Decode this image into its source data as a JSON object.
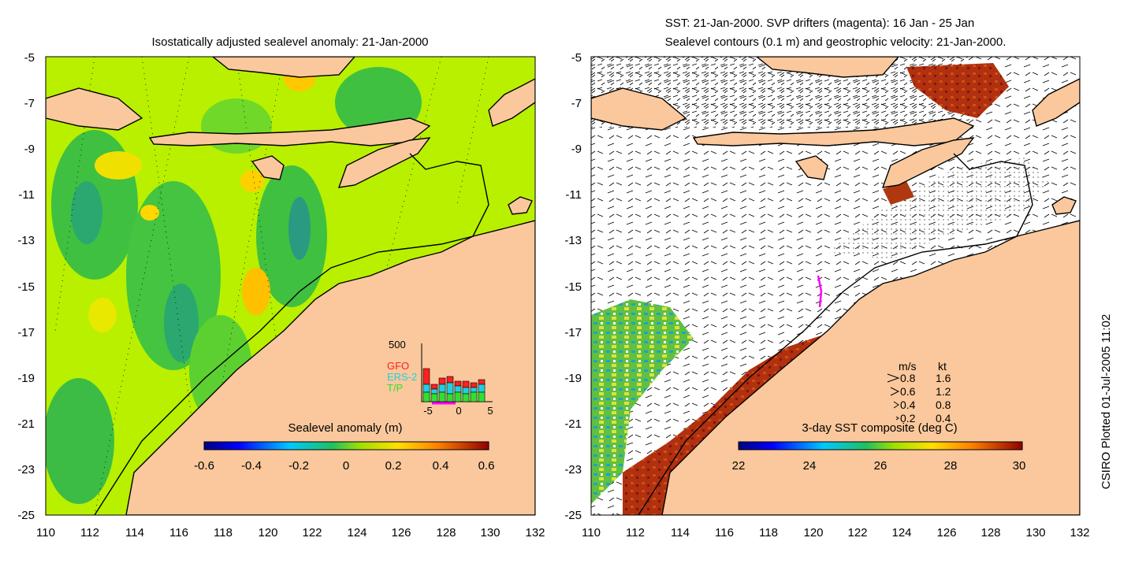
{
  "left": {
    "title": "Isostatically adjusted sealevel anomaly: 21-Jan-2000",
    "colorbar": {
      "label": "Sealevel anomaly (m)",
      "ticks": [
        "-0.6",
        "-0.4",
        "-0.2",
        "0",
        "0.2",
        "0.4",
        "0.6"
      ],
      "range": [
        -0.6,
        0.6
      ]
    },
    "inset": {
      "max_label": "500",
      "x_ticks": [
        "-5",
        "0",
        "5"
      ],
      "legend": [
        {
          "name": "GFO",
          "color": "#ff2020"
        },
        {
          "name": "ERS-2",
          "color": "#20d0e0"
        },
        {
          "name": "T/P",
          "color": "#30e030"
        }
      ]
    }
  },
  "right": {
    "title_line1": "SST: 21-Jan-2000. SVP drifters (magenta): 16 Jan - 25 Jan",
    "title_line2": "Sealevel contours (0.1 m) and geostrophic velocity: 21-Jan-2000.",
    "colorbar": {
      "label": "3-day SST composite (deg C)",
      "ticks": [
        "22",
        "24",
        "26",
        "28",
        "30"
      ],
      "range": [
        22,
        30
      ]
    },
    "velocity_legend": {
      "header_ms": "m/s",
      "header_kt": "kt",
      "rows": [
        {
          "ms": "0.8",
          "kt": "1.6"
        },
        {
          "ms": "0.6",
          "kt": "1.2"
        },
        {
          "ms": "0.4",
          "kt": "0.8"
        },
        {
          "ms": "0.2",
          "kt": "0.4"
        }
      ]
    }
  },
  "axes": {
    "x_ticks": [
      "110",
      "112",
      "114",
      "116",
      "118",
      "120",
      "122",
      "124",
      "126",
      "128",
      "130",
      "132"
    ],
    "y_ticks": [
      "-5",
      "-7",
      "-9",
      "-11",
      "-13",
      "-15",
      "-17",
      "-19",
      "-21",
      "-23",
      "-25"
    ],
    "lon_range": [
      110,
      132
    ],
    "lat_range": [
      -25,
      -5
    ]
  },
  "credit": "CSIRO Plotted 01-Jul-2005 11:02",
  "colors": {
    "land": "#fac89c",
    "sla_background": "#b8f000",
    "sla_green": "#40c040",
    "sst_warm": "#a02010"
  }
}
